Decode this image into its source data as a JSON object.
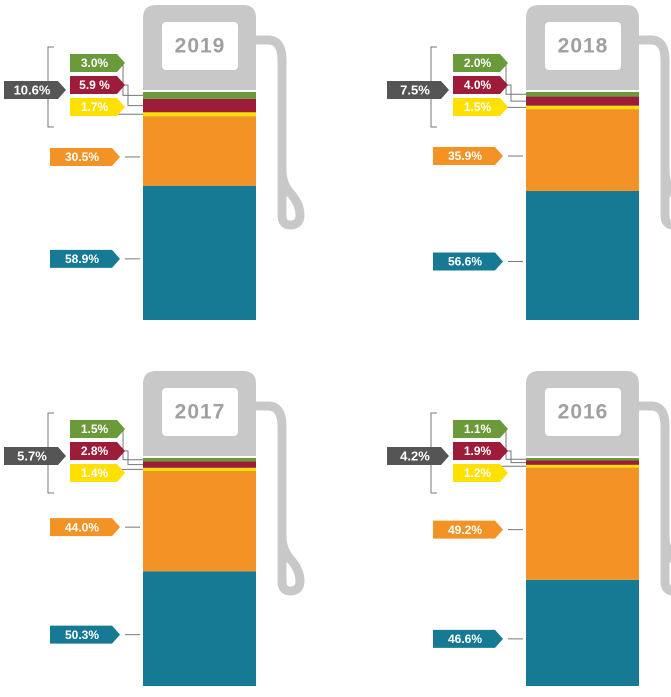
{
  "chart_data": [
    {
      "type": "bar",
      "title": "2019",
      "values": [
        3.0,
        5.9,
        1.7,
        30.5,
        58.9
      ],
      "value_labels": [
        "3.0%",
        "5.9 %",
        "1.7%",
        "30.5%",
        "58.9%"
      ],
      "colors": [
        "#6a9a3a",
        "#9c1c3a",
        "#ffe000",
        "#f39325",
        "#167a94"
      ],
      "bracket_value": 10.6,
      "bracket_value_label": "10.6%"
    },
    {
      "type": "bar",
      "title": "2018",
      "values": [
        2.0,
        4.0,
        1.5,
        35.9,
        56.6
      ],
      "value_labels": [
        "2.0%",
        "4.0%",
        "1.5%",
        "35.9%",
        "56.6%"
      ],
      "colors": [
        "#6a9a3a",
        "#9c1c3a",
        "#ffe000",
        "#f39325",
        "#167a94"
      ],
      "bracket_value": 7.5,
      "bracket_value_label": "7.5%"
    },
    {
      "type": "bar",
      "title": "2017",
      "values": [
        1.5,
        2.8,
        1.4,
        44.0,
        50.3
      ],
      "value_labels": [
        "1.5%",
        "2.8%",
        "1.4%",
        "44.0%",
        "50.3%"
      ],
      "colors": [
        "#6a9a3a",
        "#9c1c3a",
        "#ffe000",
        "#f39325",
        "#167a94"
      ],
      "bracket_value": 5.7,
      "bracket_value_label": "5.7%"
    },
    {
      "type": "bar",
      "title": "2016",
      "values": [
        1.1,
        1.9,
        1.2,
        49.2,
        46.6
      ],
      "value_labels": [
        "1.1%",
        "1.9%",
        "1.2%",
        "49.2%",
        "46.6%"
      ],
      "colors": [
        "#6a9a3a",
        "#9c1c3a",
        "#ffe000",
        "#f39325",
        "#167a94"
      ],
      "bracket_value": 4.2,
      "bracket_value_label": "4.2%"
    }
  ]
}
